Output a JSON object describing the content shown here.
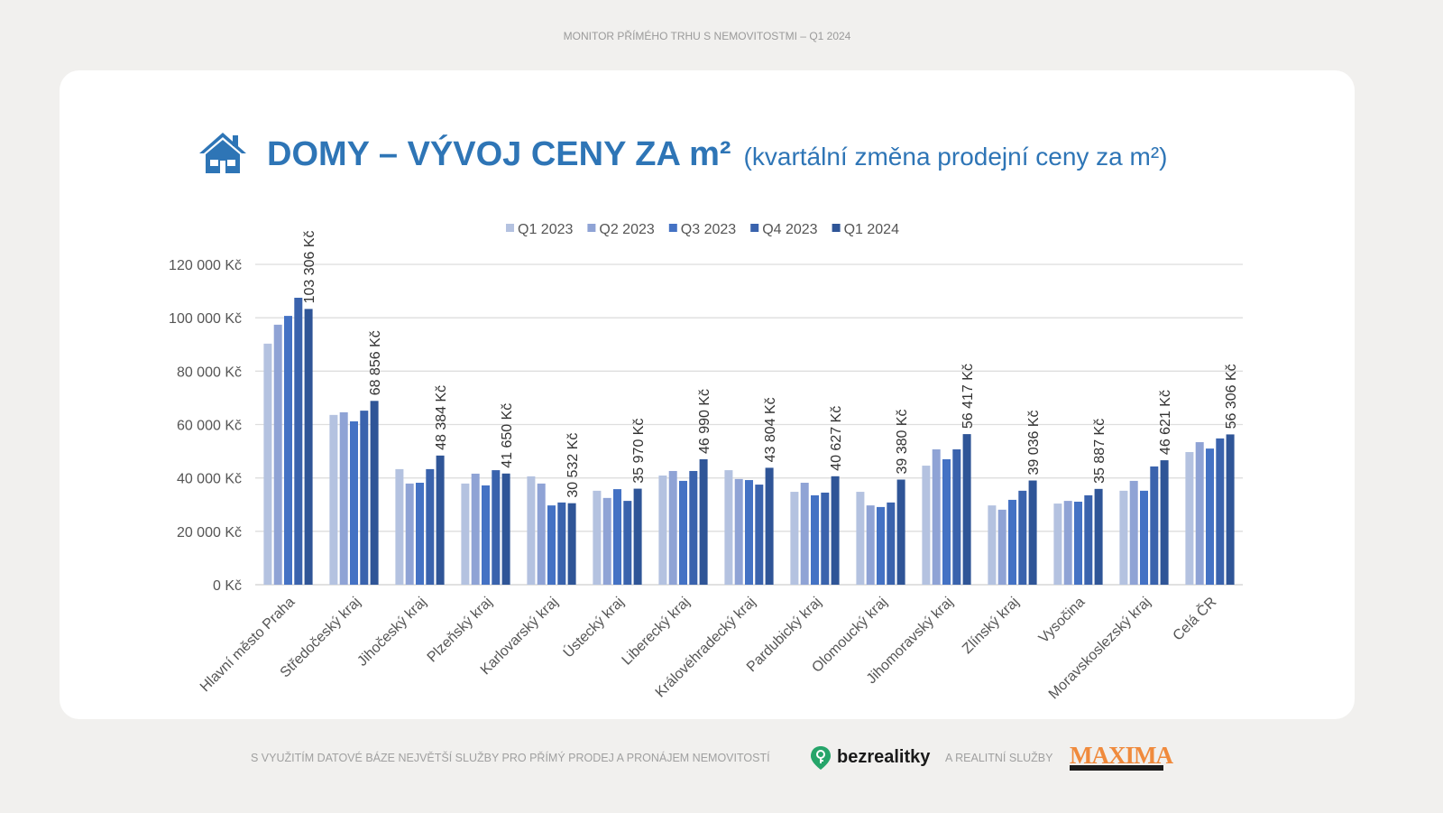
{
  "header": {
    "top_text": "MONITOR PŘÍMÉHO TRHU S NEMOVITOSTMI – Q1 2024"
  },
  "title": {
    "main": "DOMY – VÝVOJ CENY ZA m²",
    "sub": "(kvartální změna prodejní ceny za m²)",
    "icon": "house-icon"
  },
  "footer": {
    "text1": "S VYUŽITÍM DATOVÉ BÁZE NEJVĚTŠÍ SLUŽBY PRO PŘÍMÝ PRODEJ A PRONÁJEM NEMOVITOSTÍ",
    "brand": "bezrealitky",
    "text2": "A REALITNÍ SLUŽBY",
    "brand2": "MAXIMA"
  },
  "chart_data": {
    "type": "bar",
    "title": "DOMY – VÝVOJ CENY ZA m²",
    "xlabel": "",
    "ylabel": "",
    "ylim": [
      0,
      120000
    ],
    "yticks": [
      0,
      20000,
      40000,
      60000,
      80000,
      100000,
      120000
    ],
    "ytick_labels": [
      "0 Kč",
      "20 000 Kč",
      "40 000 Kč",
      "60 000 Kč",
      "80 000 Kč",
      "100 000 Kč",
      "120 000 Kč"
    ],
    "grid": true,
    "legend_position": "top",
    "categories": [
      "Hlavní město Praha",
      "Středočeský kraj",
      "Jihočeský kraj",
      "Plzeňský kraj",
      "Karlovarský kraj",
      "Ústecký kraj",
      "Liberecký kraj",
      "Královéhradecký kraj",
      "Pardubický kraj",
      "Olomoucký kraj",
      "Jihomoravský kraj",
      "Zlínský kraj",
      "Vysočina",
      "Moravskoslezský kraj",
      "Celá ČR"
    ],
    "series": [
      {
        "name": "Q1 2023",
        "color": "#b4c2e0",
        "values": [
          90300,
          63600,
          43300,
          37900,
          40600,
          35200,
          40900,
          42900,
          34800,
          34800,
          44600,
          29700,
          30400,
          35200,
          49700
        ]
      },
      {
        "name": "Q2 2023",
        "color": "#8fa3d5",
        "values": [
          97400,
          64600,
          37900,
          41600,
          37900,
          32500,
          42600,
          39600,
          38200,
          29700,
          50700,
          28100,
          31400,
          38900,
          53400
        ]
      },
      {
        "name": "Q3 2023",
        "color": "#4472c4",
        "values": [
          100700,
          61200,
          38200,
          37200,
          29700,
          35800,
          38900,
          39200,
          33500,
          29100,
          47000,
          31800,
          31100,
          35200,
          51000
        ]
      },
      {
        "name": "Q4 2023",
        "color": "#3a63ad",
        "values": [
          107500,
          65200,
          43300,
          42900,
          30800,
          31400,
          42600,
          37500,
          34500,
          30800,
          50700,
          35200,
          33500,
          44300,
          54800
        ]
      },
      {
        "name": "Q1 2024",
        "color": "#2f5597",
        "values": [
          103306,
          68856,
          48384,
          41650,
          30532,
          35970,
          46990,
          43804,
          40627,
          39380,
          56417,
          39036,
          35887,
          46621,
          56306
        ]
      }
    ],
    "data_labels": [
      "103 306 Kč",
      "68 856 Kč",
      "48 384 Kč",
      "41 650 Kč",
      "30 532 Kč",
      "35 970 Kč",
      "46 990 Kč",
      "43 804 Kč",
      "40 627 Kč",
      "39 380 Kč",
      "56 417 Kč",
      "39 036 Kč",
      "35 887 Kč",
      "46 621 Kč",
      "56 306 Kč"
    ]
  }
}
